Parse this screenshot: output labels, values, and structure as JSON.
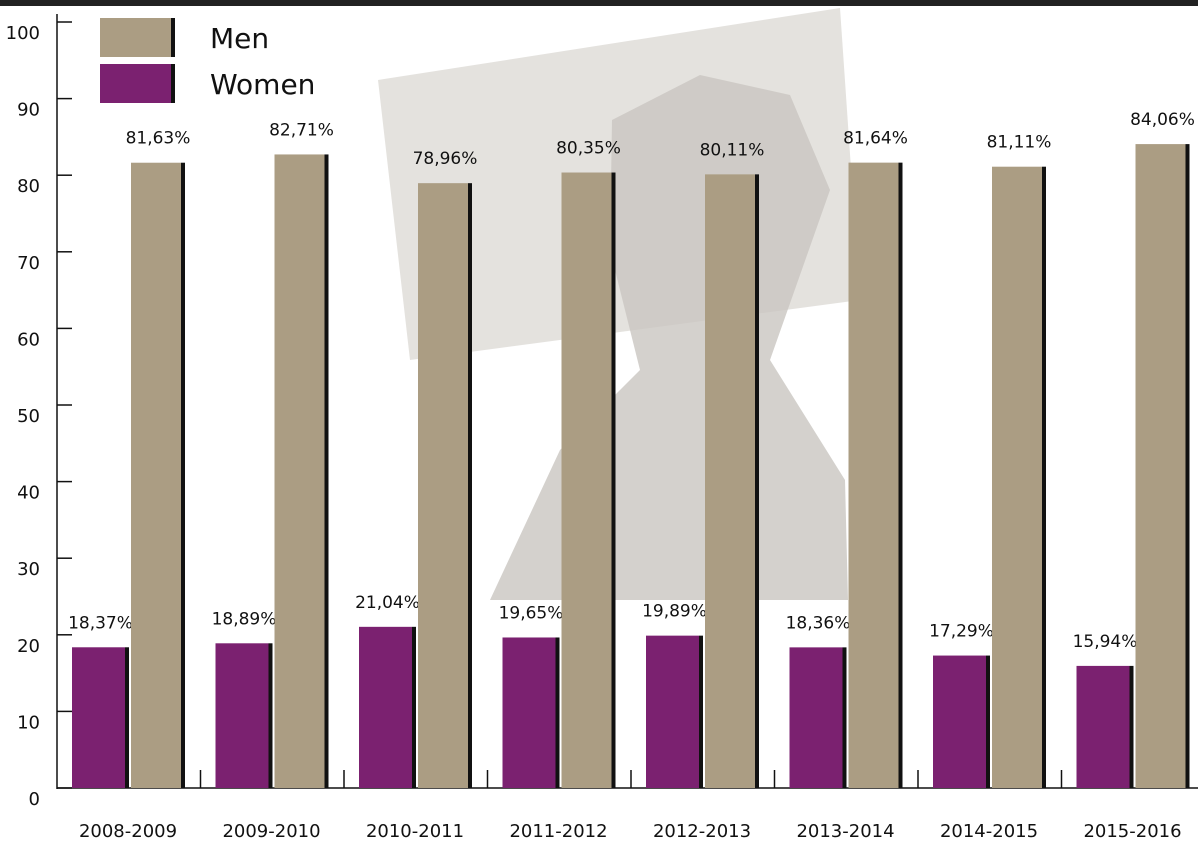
{
  "chart_data": {
    "type": "bar",
    "categories": [
      "2008-2009",
      "2009-2010",
      "2010-2011",
      "2011-2012",
      "2012-2013",
      "2013-2014",
      "2014-2015",
      "2015-2016"
    ],
    "series": [
      {
        "name": "Women",
        "color": "#7b2170",
        "values": [
          18.37,
          18.89,
          21.04,
          19.65,
          19.89,
          18.36,
          17.29,
          15.94
        ],
        "value_labels": [
          "18,37%",
          "18,89%",
          "21,04%",
          "19,65%",
          "19,89%",
          "18,36%",
          "17,29%",
          "15,94%"
        ]
      },
      {
        "name": "Men",
        "color": "#ab9d83",
        "values": [
          81.63,
          82.71,
          78.96,
          80.35,
          80.11,
          81.64,
          81.11,
          84.06
        ],
        "value_labels": [
          "81,63%",
          "82,71%",
          "78,96%",
          "80,35%",
          "80,11%",
          "81,64%",
          "81,11%",
          "84,06%"
        ]
      }
    ],
    "ylim": [
      0,
      100
    ],
    "yticks": [
      0,
      10,
      20,
      30,
      40,
      50,
      60,
      70,
      80,
      90,
      100
    ],
    "legend": "top-left"
  }
}
